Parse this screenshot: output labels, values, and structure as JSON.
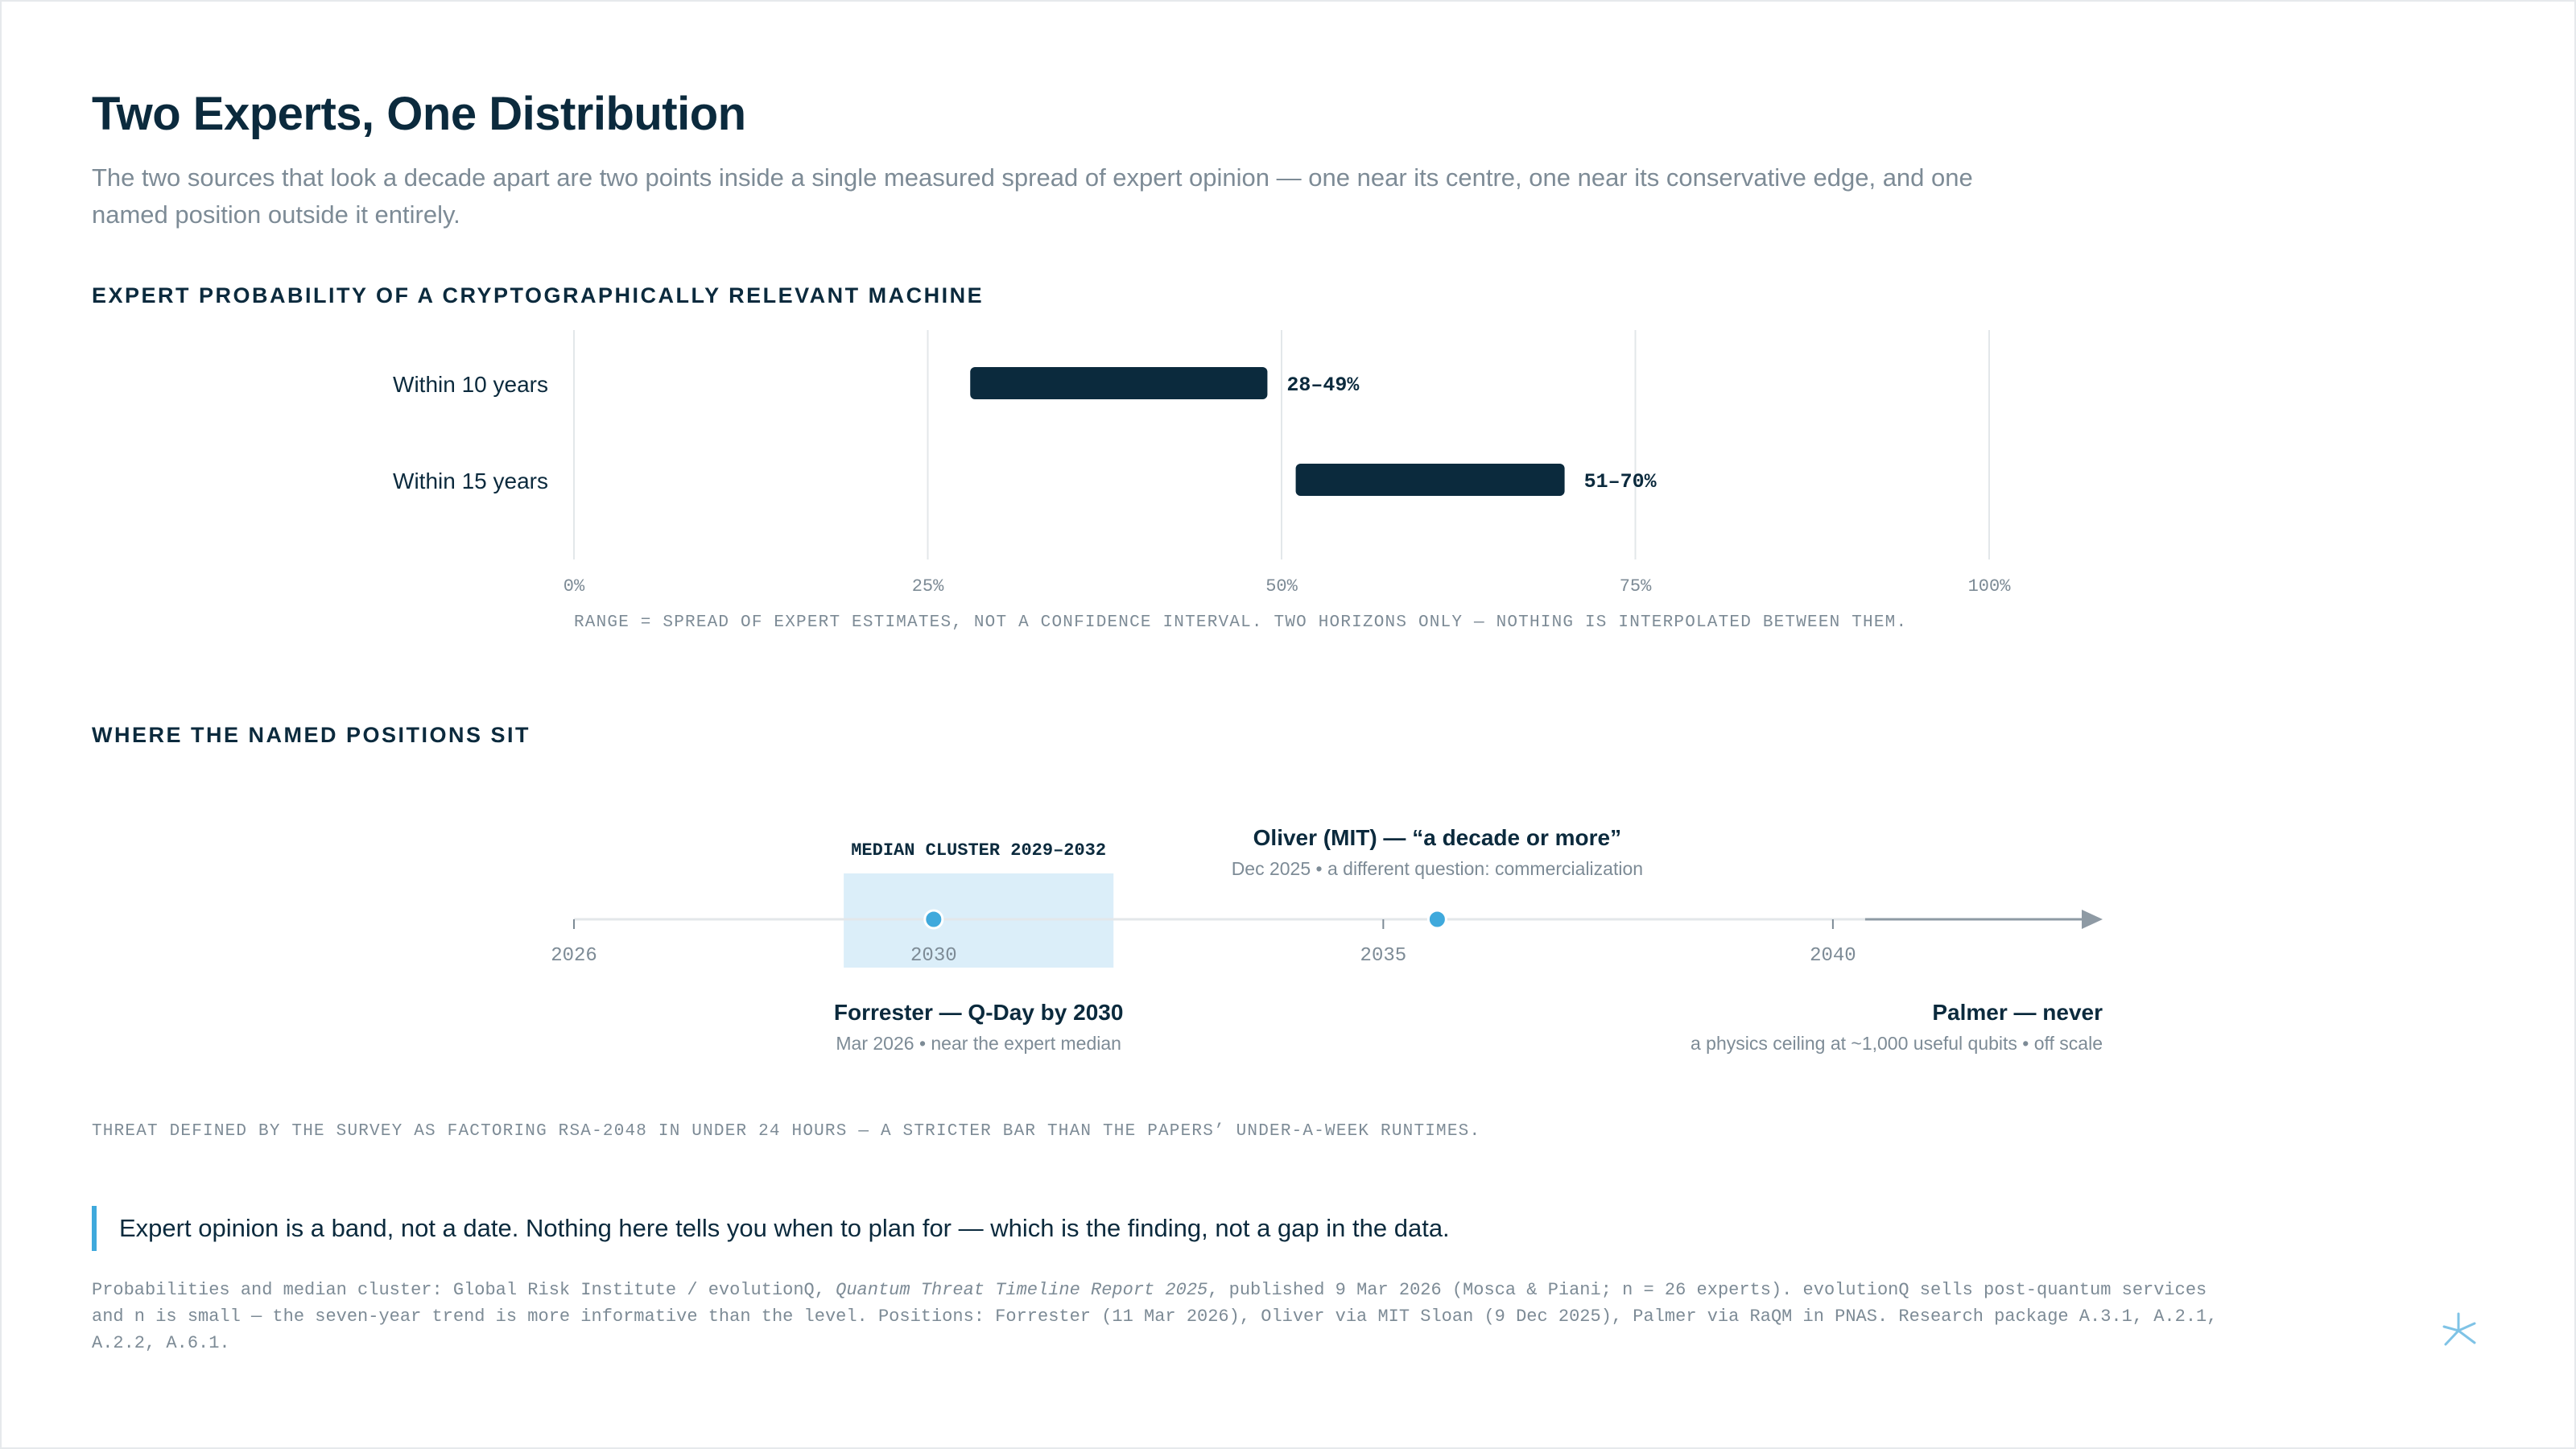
{
  "page": {
    "title": "Two Experts, One Distribution",
    "subtitle": "The two sources that look a decade apart are two points inside a single measured spread of expert opinion — one near its centre, one near its conservative edge, and one named position outside it entirely.",
    "section1_label": "EXPERT PROBABILITY OF A CRYPTOGRAPHICALLY RELEVANT MACHINE",
    "section2_label": "WHERE THE NAMED POSITIONS SIT",
    "range_note": "RANGE = SPREAD OF EXPERT ESTIMATES, NOT A CONFIDENCE INTERVAL. TWO HORIZONS ONLY — NOTHING IS INTERPOLATED BETWEEN THEM.",
    "threat_note": "THREAT DEFINED BY THE SURVEY AS FACTORING RSA-2048 IN UNDER 24 HOURS — A STRICTER BAR THAN THE PAPERS’ UNDER-A-WEEK RUNTIMES.",
    "callout": "Expert opinion is a band, not a date. Nothing here tells you when to plan for — which is the finding, not a gap in the data.",
    "footnote": {
      "pre": "Probabilities and median cluster: Global Risk Institute / evolutionQ, ",
      "report": "Quantum Threat Timeline Report 2025",
      "post": ", published 9 Mar 2026 (Mosca & Piani; n = 26 experts). evolutionQ sells post-quantum services and n is small — the seven-year trend is more informative than the level. Positions: Forrester (11 Mar 2026), Oliver via MIT Sloan (9 Dec 2025), Palmer via RaQM in PNAS. Research package A.3.1, A.2.1, A.2.2, A.6.1."
    },
    "colors": {
      "navy": "#0b2a3d",
      "accent": "#3fa9dc",
      "band": "#dbeef9",
      "grid": "#e3e7ea",
      "muted": "#7d8b96"
    },
    "logo_icon": "asterisk-logo-icon"
  },
  "chart_data": [
    {
      "type": "bar",
      "orientation": "horizontal-range",
      "categories": [
        "Within 10 years",
        "Within 15 years"
      ],
      "ranges": [
        [
          28,
          49
        ],
        [
          51,
          70
        ]
      ],
      "value_labels": [
        "28–49%",
        "51–70%"
      ],
      "xlim": [
        0,
        100
      ],
      "xticks": [
        0,
        25,
        50,
        75,
        100
      ],
      "xtick_labels": [
        "0%",
        "25%",
        "50%",
        "75%",
        "100%"
      ],
      "grid": true
    },
    {
      "type": "scatter",
      "orientation": "timeline",
      "xlim": [
        2026,
        2043
      ],
      "xticks": [
        2026,
        2030,
        2035,
        2040
      ],
      "xtick_labels": [
        "2026",
        "2030",
        "2035",
        "2040"
      ],
      "band": {
        "label": "MEDIAN CLUSTER 2029–2032",
        "start": 2029,
        "end": 2032
      },
      "points": [
        {
          "name": "Forrester — Q-Day by 2030",
          "detail": "Mar 2026 • near the expert median",
          "x": 2030,
          "label_side": "below"
        },
        {
          "name": "Oliver (MIT) — “a decade or more”",
          "detail": "Dec 2025 • a different question: commercialization",
          "x": 2035.6,
          "label_side": "above"
        }
      ],
      "off_scale": {
        "name": "Palmer — never",
        "detail": "a physics ceiling at ~1,000 useful qubits • off scale"
      }
    }
  ]
}
